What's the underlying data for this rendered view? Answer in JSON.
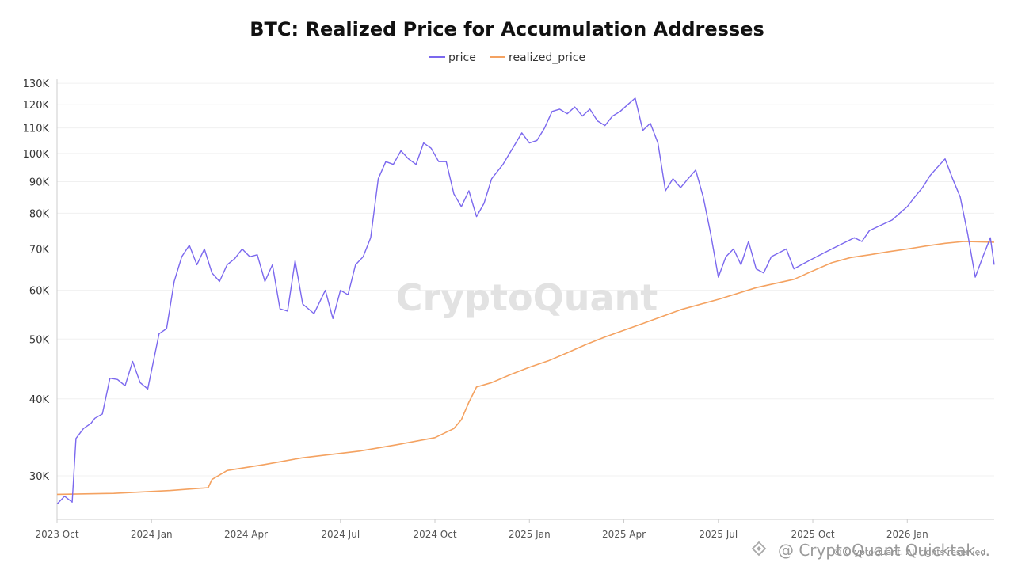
{
  "chart_data": {
    "type": "line",
    "title": "BTC: Realized Price for Accumulation Addresses",
    "xlabel": "",
    "ylabel": "",
    "y_scale": "log",
    "ylim": [
      25500,
      132000
    ],
    "y_ticks": [
      30000,
      40000,
      50000,
      60000,
      70000,
      80000,
      90000,
      100000,
      110000,
      120000,
      130000
    ],
    "y_tick_labels": [
      "30K",
      "40K",
      "50K",
      "60K",
      "70K",
      "80K",
      "90K",
      "100K",
      "110K",
      "120K",
      "130K"
    ],
    "x_range": [
      2023.75,
      2026.23
    ],
    "x_ticks": [
      2023.75,
      2024.0,
      2024.25,
      2024.5,
      2024.75,
      2025.0,
      2025.25,
      2025.5,
      2025.75,
      2026.0
    ],
    "x_tick_labels": [
      "2023 Oct",
      "2024 Jan",
      "2024 Apr",
      "2024 Jul",
      "2024 Oct",
      "2025 Jan",
      "2025 Apr",
      "2025 Jul",
      "2025 Oct",
      "2026 Jan"
    ],
    "legend_position": "top-center",
    "grid": true,
    "series": [
      {
        "name": "price",
        "color": "#7b68ee",
        "x": [
          2023.75,
          2023.77,
          2023.79,
          2023.8,
          2023.82,
          2023.84,
          2023.85,
          2023.87,
          2023.89,
          2023.91,
          2023.93,
          2023.95,
          2023.97,
          2023.99,
          2024.02,
          2024.04,
          2024.06,
          2024.08,
          2024.1,
          2024.12,
          2024.14,
          2024.16,
          2024.18,
          2024.2,
          2024.22,
          2024.24,
          2024.26,
          2024.28,
          2024.3,
          2024.32,
          2024.34,
          2024.36,
          2024.38,
          2024.4,
          2024.43,
          2024.46,
          2024.48,
          2024.5,
          2024.52,
          2024.54,
          2024.56,
          2024.58,
          2024.6,
          2024.62,
          2024.64,
          2024.66,
          2024.68,
          2024.7,
          2024.72,
          2024.74,
          2024.76,
          2024.78,
          2024.8,
          2024.82,
          2024.84,
          2024.86,
          2024.88,
          2024.9,
          2024.93,
          2024.96,
          2024.98,
          2025.0,
          2025.02,
          2025.04,
          2025.06,
          2025.08,
          2025.1,
          2025.12,
          2025.14,
          2025.16,
          2025.18,
          2025.2,
          2025.22,
          2025.24,
          2025.26,
          2025.28,
          2025.3,
          2025.32,
          2025.34,
          2025.36,
          2025.38,
          2025.4,
          2025.42,
          2025.44,
          2025.46,
          2025.48,
          2025.5,
          2025.52,
          2025.54,
          2025.56,
          2025.58,
          2025.6,
          2025.62,
          2025.64,
          2025.66,
          2025.68,
          2025.7,
          2025.72,
          2025.74,
          2025.76,
          2025.78,
          2025.8,
          2025.82,
          2025.84,
          2025.86,
          2025.88,
          2025.9,
          2025.92,
          2025.94,
          2025.96,
          2025.98,
          2026.0,
          2026.02,
          2026.04,
          2026.06,
          2026.08,
          2026.1,
          2026.12,
          2026.14,
          2026.16,
          2026.18,
          2026.2,
          2026.22,
          2026.23
        ],
        "values": [
          27000,
          27800,
          27200,
          34500,
          35800,
          36500,
          37200,
          37800,
          43200,
          43000,
          42000,
          46000,
          42500,
          41500,
          51000,
          52000,
          62000,
          68000,
          71000,
          66000,
          70000,
          64000,
          62000,
          66000,
          67500,
          70000,
          68000,
          68500,
          62000,
          66000,
          56000,
          55500,
          67000,
          57000,
          55000,
          60000,
          54000,
          60000,
          59000,
          66000,
          68000,
          73000,
          91000,
          97000,
          96000,
          101000,
          98000,
          96000,
          104000,
          102000,
          97000,
          97000,
          86000,
          82000,
          87000,
          79000,
          83000,
          91000,
          96000,
          103000,
          108000,
          104000,
          105000,
          110000,
          117000,
          118000,
          116000,
          119000,
          115000,
          118000,
          113000,
          111000,
          115000,
          117000,
          120000,
          123000,
          109000,
          112000,
          104000,
          87000,
          91000,
          88000,
          91000,
          94000,
          85000,
          74000,
          63000,
          68000,
          70000,
          66000,
          72000,
          65000,
          64000,
          68000,
          69000,
          70000,
          65000,
          66000,
          67000,
          68000,
          69000,
          70000,
          71000,
          72000,
          73000,
          72000,
          75000,
          76000,
          77000,
          78000,
          80000,
          82000,
          85000,
          88000,
          92000,
          95000,
          98000,
          91000,
          85000,
          74000,
          63000,
          68000,
          73000,
          66000
        ]
      },
      {
        "name": "realized_price",
        "color": "#f4a261",
        "x": [
          2023.75,
          2023.9,
          2024.05,
          2024.15,
          2024.16,
          2024.2,
          2024.3,
          2024.4,
          2024.55,
          2024.65,
          2024.75,
          2024.8,
          2024.82,
          2024.84,
          2024.86,
          2024.9,
          2024.95,
          2025.0,
          2025.05,
          2025.1,
          2025.15,
          2025.2,
          2025.3,
          2025.4,
          2025.5,
          2025.6,
          2025.7,
          2025.75,
          2025.8,
          2025.85,
          2025.9,
          2025.95,
          2026.0,
          2026.05,
          2026.1,
          2026.15,
          2026.23
        ],
        "values": [
          28000,
          28100,
          28400,
          28700,
          29600,
          30600,
          31300,
          32100,
          32900,
          33700,
          34600,
          35800,
          37000,
          39500,
          41800,
          42500,
          43800,
          45000,
          46100,
          47500,
          49000,
          50400,
          53000,
          55800,
          58000,
          60600,
          62500,
          64500,
          66500,
          67800,
          68500,
          69300,
          70000,
          70800,
          71500,
          72000,
          71800
        ]
      }
    ]
  },
  "legend": {
    "price_label": "price",
    "realized_label": "realized_price"
  },
  "watermark": {
    "brand": "CryptoQuant",
    "copyright": "© CryptoQuant. All rights reserved",
    "source_tag": "@ CryptoQuant Quicktak..."
  }
}
